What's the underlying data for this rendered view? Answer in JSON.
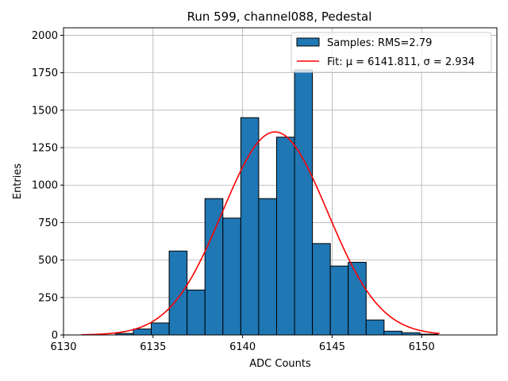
{
  "chart_data": {
    "type": "bar",
    "title": "Run 599, channel088, Pedestal",
    "xlabel": "ADC Counts",
    "ylabel": "Entries",
    "xlim": [
      6130,
      6154.2
    ],
    "ylim": [
      0,
      2050
    ],
    "grid": true,
    "xticks": [
      6130,
      6135,
      6140,
      6145,
      6150
    ],
    "yticks": [
      0,
      250,
      500,
      750,
      1000,
      1250,
      1500,
      1750,
      2000
    ],
    "bin_edges": [
      6132.9,
      6133.9,
      6134.9,
      6135.9,
      6136.9,
      6137.9,
      6138.9,
      6139.9,
      6140.9,
      6141.9,
      6142.9,
      6143.9,
      6144.9,
      6145.9,
      6146.9,
      6147.9,
      6148.9,
      6149.9,
      6150.9
    ],
    "counts": [
      10,
      40,
      80,
      560,
      300,
      910,
      780,
      1450,
      910,
      1320,
      1770,
      610,
      460,
      485,
      100,
      25,
      15,
      5
    ],
    "series": [
      {
        "name": "Samples: RMS=2.79",
        "kind": "histogram",
        "color": "#1f77b4"
      },
      {
        "name": "Fit: μ = 6141.811, σ = 2.934",
        "kind": "gaussian",
        "color": "#ff0000",
        "mu": 6141.811,
        "sigma": 2.934,
        "amplitude": 1355,
        "x_range": [
          6131,
          6151
        ]
      }
    ],
    "legend_position": "top-right"
  }
}
